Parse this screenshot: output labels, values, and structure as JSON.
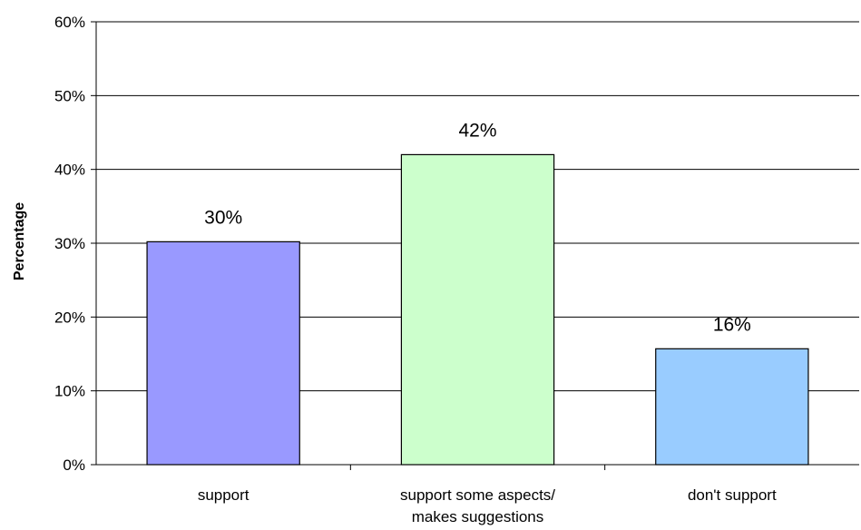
{
  "chart_data": {
    "type": "bar",
    "categories": [
      [
        "support"
      ],
      [
        "support some aspects/",
        "makes suggestions"
      ],
      [
        "don't support"
      ]
    ],
    "values": [
      30.2,
      42,
      15.7
    ],
    "data_labels": [
      "30%",
      "42%",
      "16%"
    ],
    "bar_colors": [
      "#9999ff",
      "#ccffcc",
      "#99ccff"
    ],
    "title": "",
    "xlabel": "",
    "ylabel": "Percentage",
    "ylim": [
      0,
      60
    ],
    "yticks": [
      0,
      10,
      20,
      30,
      40,
      50,
      60
    ],
    "ytick_labels": [
      "0%",
      "10%",
      "20%",
      "30%",
      "40%",
      "50%",
      "60%"
    ],
    "grid": true,
    "legend": "none"
  }
}
